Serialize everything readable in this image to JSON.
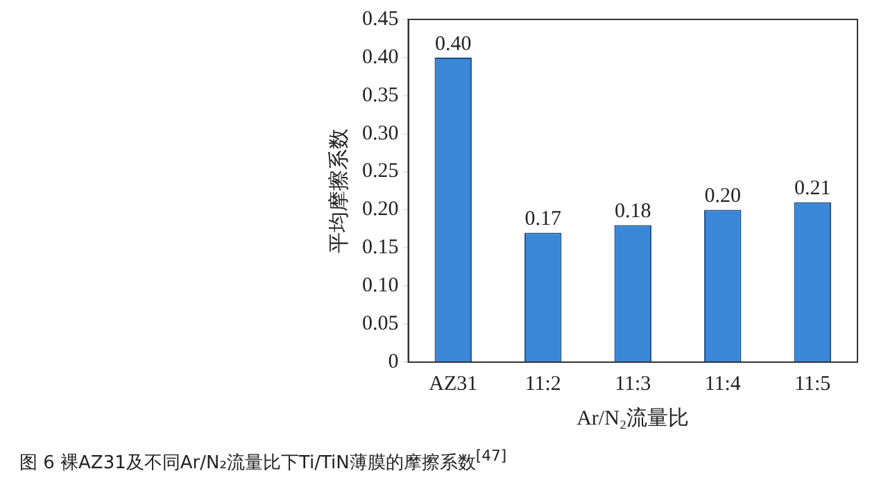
{
  "chart_data": {
    "type": "bar",
    "categories": [
      "AZ31",
      "11:2",
      "11:3",
      "11:4",
      "11:5"
    ],
    "values": [
      0.4,
      0.17,
      0.18,
      0.2,
      0.21
    ],
    "value_labels": [
      "0.40",
      "0.17",
      "0.18",
      "0.20",
      "0.21"
    ],
    "color": "#3a87d8",
    "ylim": [
      0,
      0.45
    ],
    "yticks": [
      {
        "value": 0,
        "label": "0"
      },
      {
        "value": 0.05,
        "label": "0.05"
      },
      {
        "value": 0.1,
        "label": "0.10"
      },
      {
        "value": 0.15,
        "label": "0.15"
      },
      {
        "value": 0.2,
        "label": "0.20"
      },
      {
        "value": 0.25,
        "label": "0.25"
      },
      {
        "value": 0.3,
        "label": "0.30"
      },
      {
        "value": 0.35,
        "label": "0.35"
      },
      {
        "value": 0.4,
        "label": "0.40"
      },
      {
        "value": 0.45,
        "label": "0.45"
      }
    ],
    "ylabel": "平均摩擦系数",
    "xlabel": "Ar/N₂流量比",
    "grid": false,
    "legend": false,
    "annotations": [
      "图 6 裸AZ31及不同Ar/N₂流量比下Ti/TiN薄膜的摩擦系数$^{[47]}$"
    ]
  }
}
